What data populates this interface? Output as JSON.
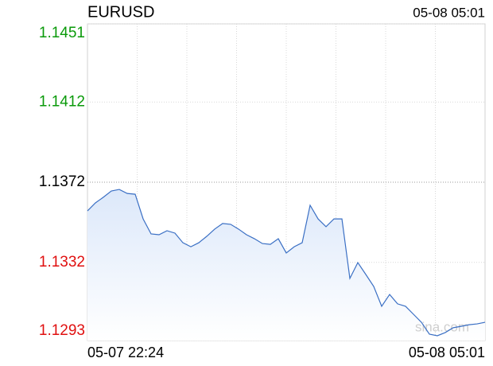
{
  "chart_data": {
    "type": "line",
    "title": "EURUSD",
    "timestamp": "05-08 05:01",
    "watermark": "sina.com",
    "categories": [
      "05-07 22:24",
      null,
      null,
      null,
      null,
      null,
      null,
      null,
      null,
      null,
      null,
      null,
      null,
      null,
      null,
      null,
      null,
      null,
      null,
      null,
      null,
      null,
      null,
      null,
      null,
      null,
      null,
      null,
      null,
      null,
      null,
      null,
      null,
      null,
      null,
      null,
      null,
      null,
      null,
      null,
      null,
      null,
      null,
      null,
      null,
      null,
      null,
      null,
      null,
      null,
      "05-08 05:01"
    ],
    "values": [
      1.13577,
      1.13617,
      1.13645,
      1.13676,
      1.13684,
      1.13664,
      1.1366,
      1.13537,
      1.13462,
      1.13458,
      1.13478,
      1.13466,
      1.13418,
      1.13398,
      1.13418,
      1.1345,
      1.13486,
      1.13514,
      1.1351,
      1.13486,
      1.13458,
      1.13438,
      1.13414,
      1.1341,
      1.13438,
      1.13367,
      1.13398,
      1.13418,
      1.13605,
      1.13537,
      1.13498,
      1.13537,
      1.13537,
      1.1324,
      1.13319,
      1.1326,
      1.132,
      1.13101,
      1.1316,
      1.13113,
      1.13101,
      1.13061,
      1.13021,
      1.12962,
      1.12954,
      1.1297,
      1.12994,
      1.13001,
      1.13009,
      1.13013,
      1.13021
    ],
    "color": "#3a6fc4",
    "ylim": [
      1.1293,
      1.1451
    ],
    "yticks": [
      1.1451,
      1.1412,
      1.1372,
      1.1332,
      1.1293
    ],
    "ytick_colors": [
      "#0a9a0a",
      "#0a9a0a",
      "#000000",
      "#e01010",
      "#e01010"
    ],
    "reference_tick": 2,
    "grid": true
  }
}
